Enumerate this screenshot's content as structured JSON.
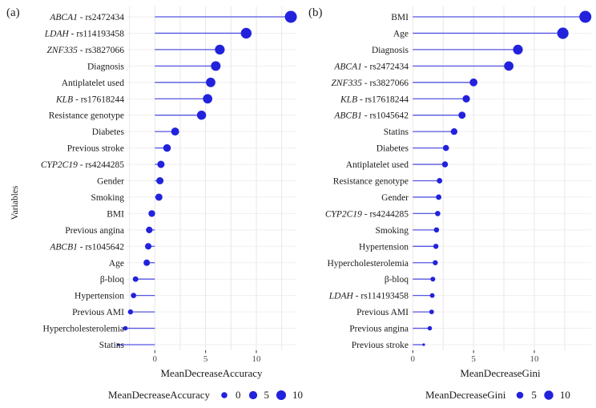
{
  "figure": {
    "kind": "two-panel lollipop chart (random forest variable importance)",
    "background_color": "#ffffff",
    "accent_blue": "#2222dd",
    "stem_blue": "#5555e2",
    "grid_color": "#e7e7e7",
    "row_grid_color": "#efefef",
    "tick_color": "#333333"
  },
  "chart_data": [
    {
      "type": "lollipop",
      "panel_label": "(a)",
      "xlabel": "MeanDecreaseAccuracy",
      "ylabel": "Variables",
      "xticks": [
        0,
        5,
        10
      ],
      "xlim": [
        -2.8,
        14.0
      ],
      "gridline_step": 2.5,
      "grid": true,
      "legend": {
        "position": "bottom",
        "title": "MeanDecreaseAccuracy",
        "values": [
          0,
          5,
          10
        ]
      },
      "categories": [
        {
          "em": "ABCA1",
          "text": " - rs2472434"
        },
        {
          "em": "LDAH",
          "text": " - rs114193458"
        },
        {
          "em": "ZNF335",
          "text": " - rs3827066"
        },
        {
          "em": "",
          "text": "Diagnosis"
        },
        {
          "em": "",
          "text": "Antiplatelet used"
        },
        {
          "em": "KLB",
          "text": " - rs17618244"
        },
        {
          "em": "",
          "text": "Resistance genotype"
        },
        {
          "em": "",
          "text": "Diabetes"
        },
        {
          "em": "",
          "text": "Previous stroke"
        },
        {
          "em": "CYP2C19",
          "text": " - rs4244285"
        },
        {
          "em": "",
          "text": "Gender"
        },
        {
          "em": "",
          "text": "Smoking"
        },
        {
          "em": "",
          "text": "BMI"
        },
        {
          "em": "",
          "text": "Previous angina"
        },
        {
          "em": "ABCB1",
          "text": " - rs1045642"
        },
        {
          "em": "",
          "text": "Age"
        },
        {
          "em": "",
          "text": "β-bloq"
        },
        {
          "em": "",
          "text": "Hypertension"
        },
        {
          "em": "",
          "text": "Previous AMI"
        },
        {
          "em": "",
          "text": "Hypercholesterolemia"
        },
        {
          "em": "",
          "text": "Statins"
        }
      ],
      "values": [
        13.4,
        9.0,
        6.4,
        6.0,
        5.5,
        5.2,
        4.6,
        2.0,
        1.2,
        0.6,
        0.5,
        0.4,
        -0.3,
        -0.55,
        -0.65,
        -0.8,
        -1.9,
        -2.1,
        -2.4,
        -2.9,
        -3.6
      ]
    },
    {
      "type": "lollipop",
      "panel_label": "(b)",
      "xlabel": "MeanDecreaseGini",
      "ylabel": "",
      "xticks": [
        0,
        5,
        10
      ],
      "xlim": [
        -0.3,
        14.7
      ],
      "gridline_step": 2.5,
      "grid": true,
      "legend": {
        "position": "bottom",
        "title": "MeanDecreaseGini",
        "values": [
          5,
          10
        ]
      },
      "categories": [
        {
          "em": "",
          "text": "BMI"
        },
        {
          "em": "",
          "text": "Age"
        },
        {
          "em": "",
          "text": "Diagnosis"
        },
        {
          "em": "ABCA1",
          "text": " - rs2472434"
        },
        {
          "em": "ZNF335",
          "text": " - rs3827066"
        },
        {
          "em": "KLB",
          "text": " - rs17618244"
        },
        {
          "em": "ABCB1",
          "text": " - rs1045642"
        },
        {
          "em": "",
          "text": "Statins"
        },
        {
          "em": "",
          "text": "Diabetes"
        },
        {
          "em": "",
          "text": "Antiplatelet used"
        },
        {
          "em": "",
          "text": "Resistance genotype"
        },
        {
          "em": "",
          "text": "Gender"
        },
        {
          "em": "CYP2C19",
          "text": " - rs4244285"
        },
        {
          "em": "",
          "text": "Smoking"
        },
        {
          "em": "",
          "text": "Hypertension"
        },
        {
          "em": "",
          "text": "Hypercholesterolemia"
        },
        {
          "em": "",
          "text": "β-bloq"
        },
        {
          "em": "LDAH",
          "text": " - rs114193458"
        },
        {
          "em": "",
          "text": "Previous AMI"
        },
        {
          "em": "",
          "text": "Previous angina"
        },
        {
          "em": "",
          "text": "Previous stroke"
        }
      ],
      "values": [
        14.2,
        12.35,
        8.65,
        7.9,
        5.0,
        4.4,
        4.05,
        3.4,
        2.73,
        2.65,
        2.2,
        2.13,
        2.05,
        1.95,
        1.9,
        1.85,
        1.65,
        1.6,
        1.55,
        1.4,
        0.9
      ]
    }
  ]
}
